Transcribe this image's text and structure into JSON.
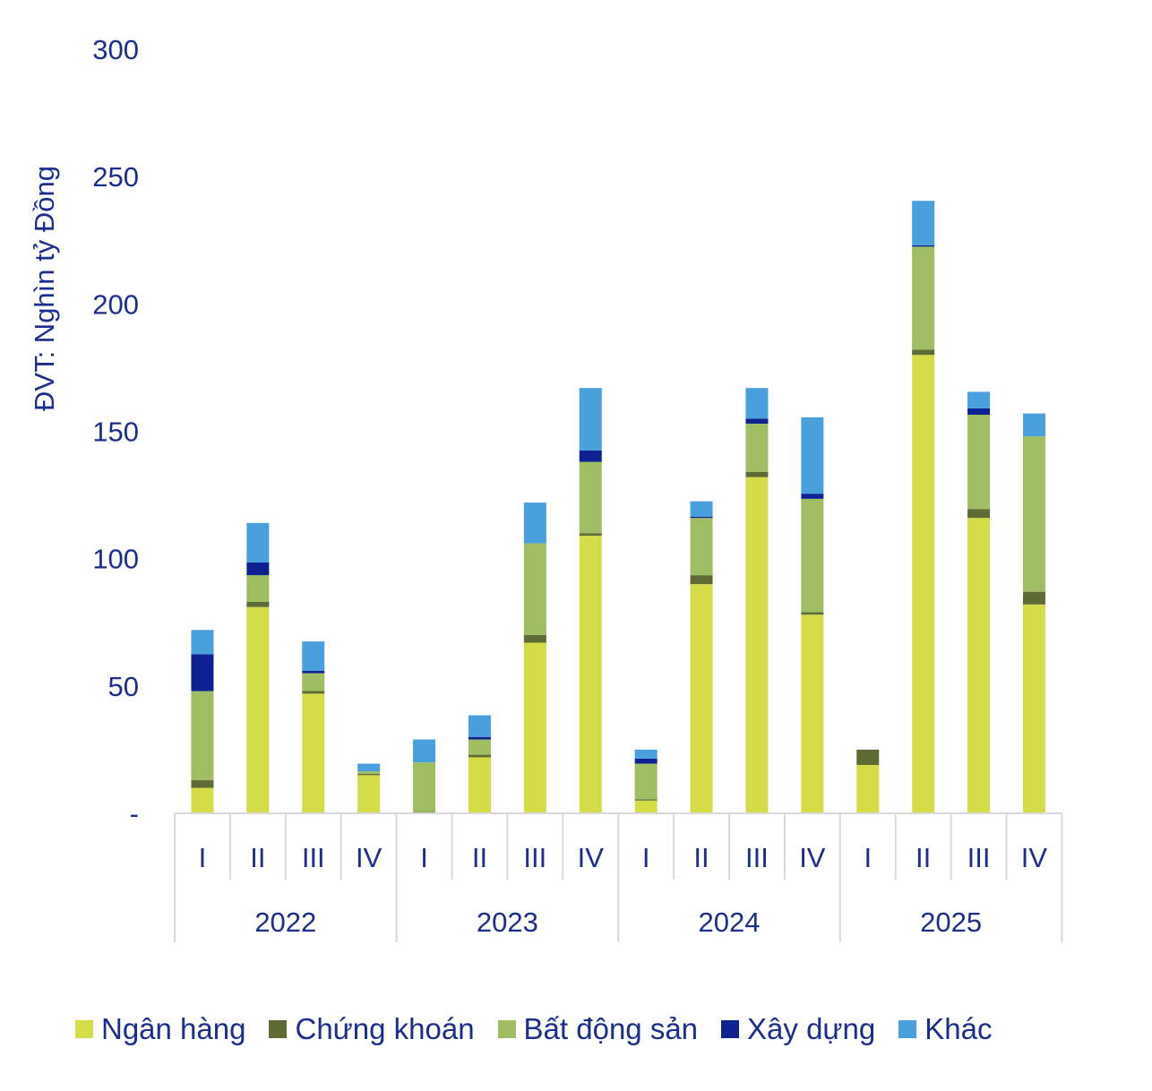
{
  "chart_data": {
    "type": "bar",
    "stacked": true,
    "ylabel": "ĐVT: Nghìn tỷ Đồng",
    "ylim": [
      0,
      300
    ],
    "yticks": [
      0,
      50,
      100,
      150,
      200,
      250,
      300
    ],
    "ytick_labels": [
      "-",
      "50",
      "100",
      "150",
      "200",
      "250",
      "300"
    ],
    "grid": false,
    "legend_position": "bottom",
    "groups": [
      {
        "label": "2022",
        "categories": [
          "I",
          "II",
          "III",
          "IV"
        ]
      },
      {
        "label": "2023",
        "categories": [
          "I",
          "II",
          "III",
          "IV"
        ]
      },
      {
        "label": "2024",
        "categories": [
          "I",
          "II",
          "III",
          "IV"
        ]
      },
      {
        "label": "2025",
        "categories": [
          "I",
          "II",
          "III",
          "IV"
        ]
      }
    ],
    "series": [
      {
        "name": "Ngân hàng",
        "color": "#d4dd47",
        "values": [
          10,
          81,
          47,
          15,
          0,
          22,
          67,
          109,
          5,
          90,
          132,
          78,
          19,
          180,
          116,
          82
        ]
      },
      {
        "name": "Chứng khoán",
        "color": "#5e6b35",
        "values": [
          3,
          2,
          1,
          0.5,
          0.5,
          1,
          3,
          1,
          0.5,
          3.5,
          2,
          1,
          6,
          2,
          3.5,
          5
        ]
      },
      {
        "name": "Bất động sản",
        "color": "#9fbd62",
        "values": [
          35,
          10.5,
          7,
          1,
          19.5,
          6,
          36,
          28,
          14,
          22.5,
          19,
          44.5,
          0,
          40.5,
          37,
          61
        ]
      },
      {
        "name": "Xây dựng",
        "color": "#0d2193",
        "values": [
          14.5,
          5,
          1,
          0,
          0,
          1,
          0,
          4.5,
          2,
          0.5,
          2,
          2,
          0,
          0.5,
          2.5,
          0
        ]
      },
      {
        "name": "Khác",
        "color": "#4aa0dc",
        "values": [
          9.5,
          15.5,
          11.5,
          3,
          9,
          8.5,
          16,
          24.5,
          3.5,
          6,
          12,
          30,
          0,
          17.5,
          6.5,
          9
        ]
      }
    ]
  }
}
